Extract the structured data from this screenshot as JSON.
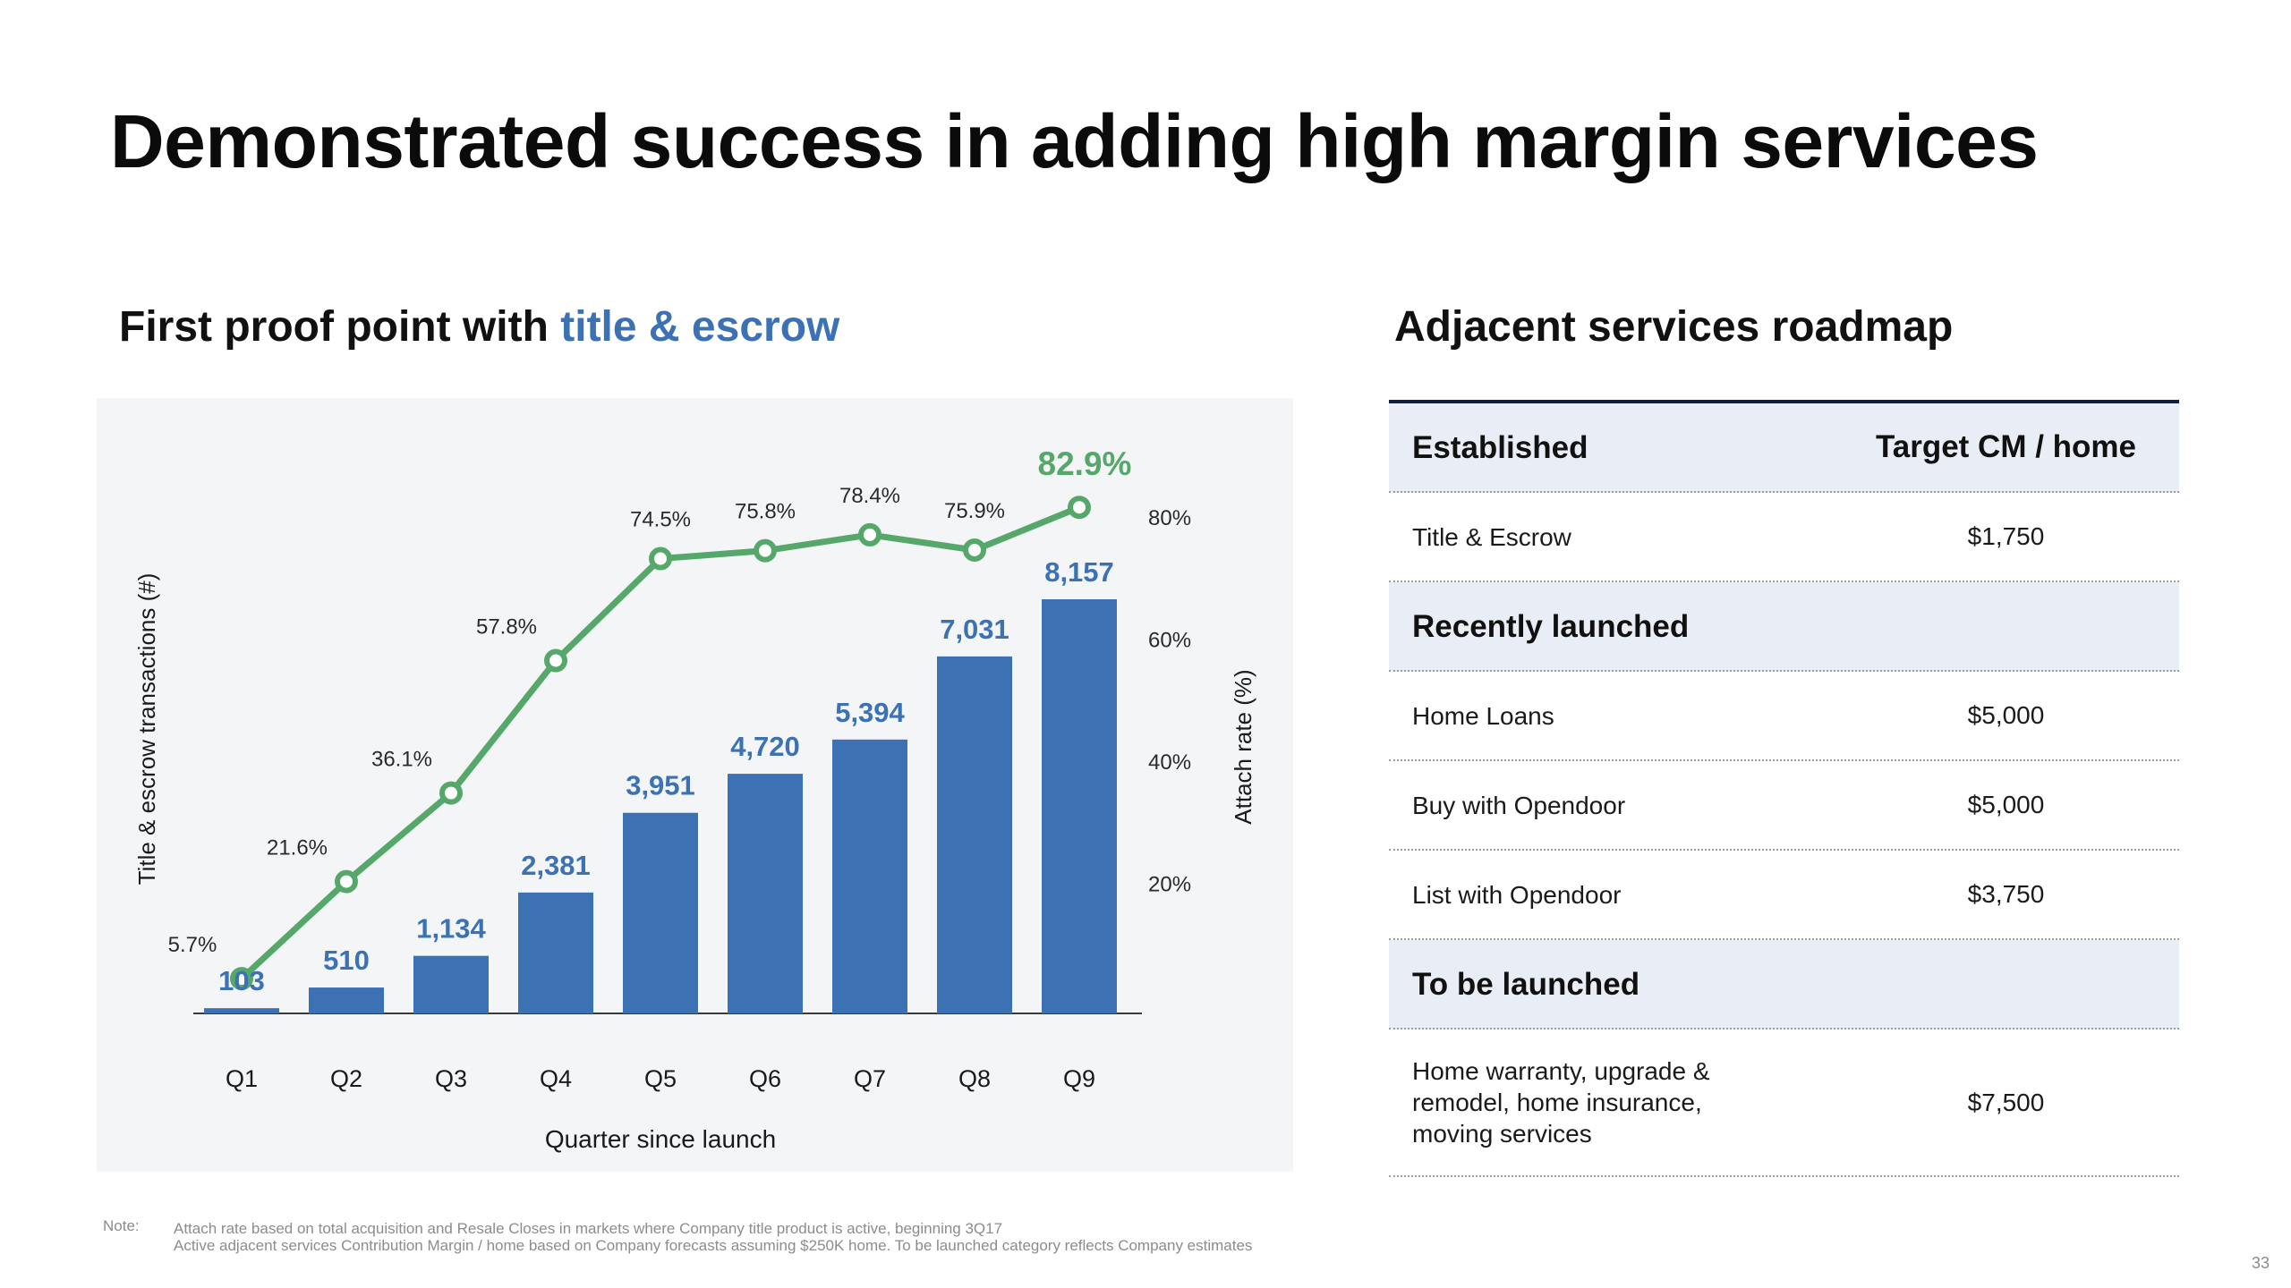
{
  "title": "Demonstrated success in adding high margin services",
  "left_heading": {
    "prefix": "First proof point with ",
    "accent": "title & escrow"
  },
  "right_heading": "Adjacent services roadmap",
  "colors": {
    "bar": "#3c72b4",
    "line": "#56a86a",
    "accent_blue": "#3c72b4",
    "panel_bg": "#f3f5f7",
    "section_bg": "#e9eef6"
  },
  "chart_data": {
    "type": "bar",
    "categories": [
      "Q1",
      "Q2",
      "Q3",
      "Q4",
      "Q5",
      "Q6",
      "Q7",
      "Q8",
      "Q9"
    ],
    "series": [
      {
        "values": [
          103,
          510,
          1134,
          2381,
          3951,
          4720,
          5394,
          7031,
          8157
        ],
        "labels": [
          "103",
          "510",
          "1,134",
          "2,381",
          "3,951",
          "4,720",
          "5,394",
          "7,031",
          "8,157"
        ]
      },
      {
        "type": "line",
        "axis": "right",
        "values": [
          5.7,
          21.6,
          36.1,
          57.8,
          74.5,
          75.8,
          78.4,
          75.9,
          82.9
        ],
        "labels": [
          "5.7%",
          "21.6%",
          "36.1%",
          "57.8%",
          "74.5%",
          "75.8%",
          "78.4%",
          "75.9%",
          "82.9%"
        ]
      }
    ],
    "xlabel": "Quarter since launch",
    "ylabel": "Title & escrow transactions (#)",
    "y2label": "Attach rate (%)",
    "y2_ticks": [
      "20%",
      "40%",
      "60%",
      "80%"
    ],
    "y2_tick_values": [
      20,
      40,
      60,
      80
    ],
    "ylim": [
      0,
      9000
    ],
    "y2lim": [
      0,
      90
    ]
  },
  "roadmap": {
    "col_header": "Target CM / home",
    "sections": [
      {
        "label": "Established",
        "items": [
          {
            "name": "Title & Escrow",
            "value": "$1,750"
          }
        ]
      },
      {
        "label": "Recently launched",
        "items": [
          {
            "name": "Home Loans",
            "value": "$5,000"
          },
          {
            "name": "Buy with Opendoor",
            "value": "$5,000"
          },
          {
            "name": "List with Opendoor",
            "value": "$3,750"
          }
        ]
      },
      {
        "label": "To be launched",
        "items": [
          {
            "name": "Home warranty, upgrade & remodel, home insurance, moving services",
            "value": "$7,500"
          }
        ]
      }
    ]
  },
  "note": {
    "label": "Note:",
    "lines": [
      "Attach rate based on total acquisition and Resale Closes in markets where Company title product is active, beginning 3Q17",
      "Active adjacent services Contribution Margin / home based on Company forecasts assuming $250K home. To be launched category reflects Company estimates"
    ]
  },
  "page_number": "33"
}
